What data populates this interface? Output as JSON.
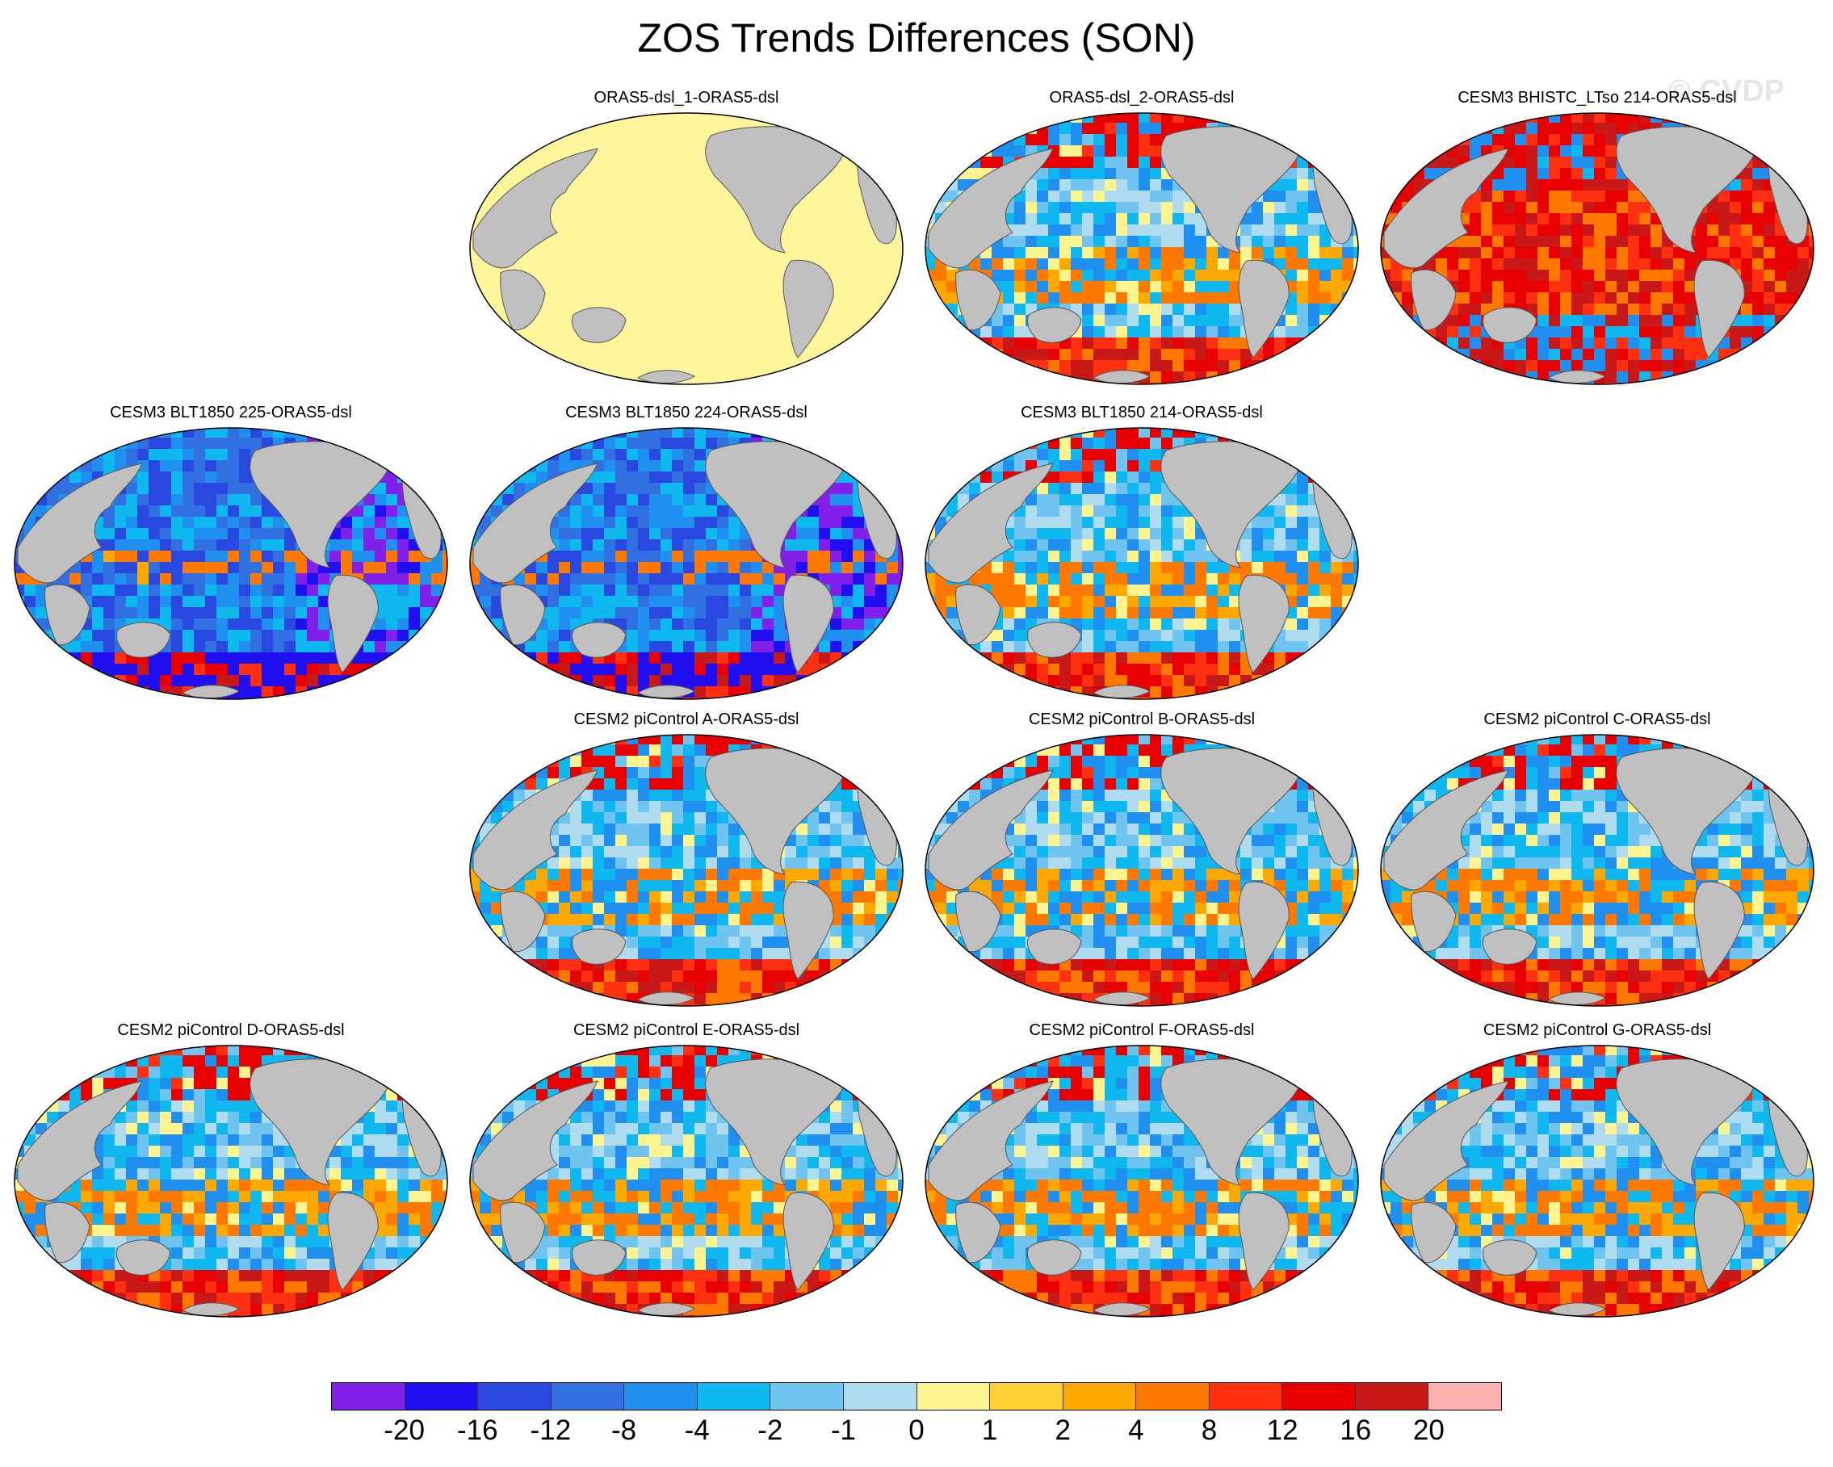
{
  "title": "ZOS Trends Differences (SON)",
  "watermark": "© CVDP",
  "panels": [
    {
      "title": "ORAS5-dsl_1-ORAS5-dsl",
      "pattern": "uniform"
    },
    {
      "title": "ORAS5-dsl_2-ORAS5-dsl",
      "pattern": "mixed"
    },
    {
      "title": "CESM3 BHISTC_LTso 214-ORAS5-dsl",
      "pattern": "warm"
    },
    {
      "title": "CESM3 BLT1850 225-ORAS5-dsl",
      "pattern": "cool"
    },
    {
      "title": "CESM3 BLT1850 224-ORAS5-dsl",
      "pattern": "cool"
    },
    {
      "title": "CESM3 BLT1850 214-ORAS5-dsl",
      "pattern": "mixed"
    },
    {
      "title": "CESM2 piControl A-ORAS5-dsl",
      "pattern": "mixed"
    },
    {
      "title": "CESM2 piControl B-ORAS5-dsl",
      "pattern": "mixed"
    },
    {
      "title": "CESM2 piControl C-ORAS5-dsl",
      "pattern": "mixed"
    },
    {
      "title": "CESM2 piControl D-ORAS5-dsl",
      "pattern": "mixed"
    },
    {
      "title": "CESM2 piControl E-ORAS5-dsl",
      "pattern": "mixed"
    },
    {
      "title": "CESM2 piControl F-ORAS5-dsl",
      "pattern": "mixed"
    },
    {
      "title": "CESM2 piControl G-ORAS5-dsl",
      "pattern": "mixed"
    }
  ],
  "colorbar": {
    "colors": [
      "#8020e8",
      "#2010f0",
      "#2848e0",
      "#3070e0",
      "#2090f0",
      "#10b8f0",
      "#70c4f0",
      "#b0dcf0",
      "#fff490",
      "#ffd030",
      "#ffa800",
      "#ff7800",
      "#ff3010",
      "#e80000",
      "#c81818",
      "#ffb0b0"
    ],
    "labels": [
      "-20",
      "-16",
      "-12",
      "-8",
      "-4",
      "-2",
      "-1",
      "0",
      "1",
      "2",
      "4",
      "8",
      "12",
      "16",
      "20"
    ]
  },
  "colors": {
    "land": "#c0c0c0",
    "uniform_ocean": "#fff59a"
  }
}
